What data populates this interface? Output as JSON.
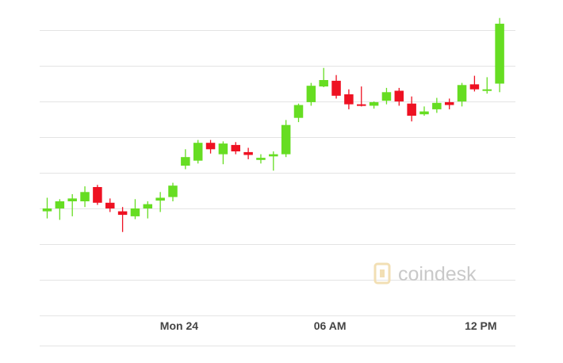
{
  "chart_data": {
    "type": "candlestick",
    "title": "",
    "xlabel": "",
    "ylabel": "",
    "x_ticks": [
      {
        "label": "Mon 24",
        "index": 10.5
      },
      {
        "label": "06 AM",
        "index": 22.5
      },
      {
        "label": "12 PM",
        "index": 34.5
      }
    ],
    "ylim": [
      38,
      82
    ],
    "grid_y": [
      40,
      45,
      50,
      55,
      60,
      65,
      70,
      75,
      80
    ],
    "colors": {
      "up": "#66dd22",
      "down": "#ee1122",
      "grid": "#e4e4e4",
      "tick_text": "#444444",
      "watermark": "#c9c9c9",
      "watermark_icon": "#f2dfb4"
    },
    "candles": [
      {
        "open": 54.6,
        "high": 56.5,
        "low": 53.6,
        "close": 55.0
      },
      {
        "open": 55.0,
        "high": 56.3,
        "low": 53.4,
        "close": 56.0
      },
      {
        "open": 56.0,
        "high": 57.0,
        "low": 53.9,
        "close": 56.4
      },
      {
        "open": 56.0,
        "high": 58.1,
        "low": 55.2,
        "close": 57.3
      },
      {
        "open": 58.0,
        "high": 58.3,
        "low": 55.5,
        "close": 55.8
      },
      {
        "open": 55.8,
        "high": 56.4,
        "low": 54.5,
        "close": 55.0
      },
      {
        "open": 54.6,
        "high": 55.2,
        "low": 51.7,
        "close": 54.1
      },
      {
        "open": 53.9,
        "high": 56.3,
        "low": 53.5,
        "close": 55.0
      },
      {
        "open": 55.0,
        "high": 56.0,
        "low": 53.6,
        "close": 55.6
      },
      {
        "open": 56.1,
        "high": 57.3,
        "low": 54.5,
        "close": 56.5
      },
      {
        "open": 56.6,
        "high": 58.6,
        "low": 56.0,
        "close": 58.2
      },
      {
        "open": 61.0,
        "high": 63.3,
        "low": 60.5,
        "close": 62.2
      },
      {
        "open": 61.7,
        "high": 64.6,
        "low": 61.3,
        "close": 64.2
      },
      {
        "open": 64.2,
        "high": 64.6,
        "low": 62.7,
        "close": 63.3
      },
      {
        "open": 62.6,
        "high": 64.4,
        "low": 61.2,
        "close": 64.1
      },
      {
        "open": 63.9,
        "high": 64.3,
        "low": 62.6,
        "close": 63.0
      },
      {
        "open": 62.9,
        "high": 63.5,
        "low": 61.9,
        "close": 62.5
      },
      {
        "open": 61.8,
        "high": 62.6,
        "low": 61.3,
        "close": 62.1
      },
      {
        "open": 62.3,
        "high": 63.0,
        "low": 60.3,
        "close": 62.6
      },
      {
        "open": 62.6,
        "high": 67.4,
        "low": 62.2,
        "close": 66.7
      },
      {
        "open": 67.7,
        "high": 69.7,
        "low": 67.1,
        "close": 69.5
      },
      {
        "open": 69.9,
        "high": 72.6,
        "low": 69.4,
        "close": 72.2
      },
      {
        "open": 72.1,
        "high": 74.7,
        "low": 72.0,
        "close": 73.0
      },
      {
        "open": 72.9,
        "high": 73.7,
        "low": 70.4,
        "close": 70.8
      },
      {
        "open": 71.0,
        "high": 71.7,
        "low": 68.9,
        "close": 69.6
      },
      {
        "open": 69.6,
        "high": 72.1,
        "low": 69.3,
        "close": 69.4
      },
      {
        "open": 69.4,
        "high": 70.0,
        "low": 69.0,
        "close": 69.9
      },
      {
        "open": 70.1,
        "high": 71.9,
        "low": 69.6,
        "close": 71.3
      },
      {
        "open": 71.5,
        "high": 71.9,
        "low": 69.4,
        "close": 70.0
      },
      {
        "open": 69.7,
        "high": 70.7,
        "low": 67.2,
        "close": 68.0
      },
      {
        "open": 68.2,
        "high": 69.3,
        "low": 68.0,
        "close": 68.6
      },
      {
        "open": 68.9,
        "high": 70.5,
        "low": 68.4,
        "close": 69.8
      },
      {
        "open": 69.9,
        "high": 70.4,
        "low": 68.9,
        "close": 69.5
      },
      {
        "open": 70.0,
        "high": 72.6,
        "low": 69.3,
        "close": 72.3
      },
      {
        "open": 72.4,
        "high": 73.6,
        "low": 71.4,
        "close": 71.7
      },
      {
        "open": 71.7,
        "high": 73.4,
        "low": 71.1,
        "close": 71.7
      },
      {
        "open": 72.5,
        "high": 81.7,
        "low": 71.3,
        "close": 80.9
      }
    ]
  },
  "watermark": {
    "brand": "coindesk",
    "icon": "coindesk-logo-icon"
  }
}
